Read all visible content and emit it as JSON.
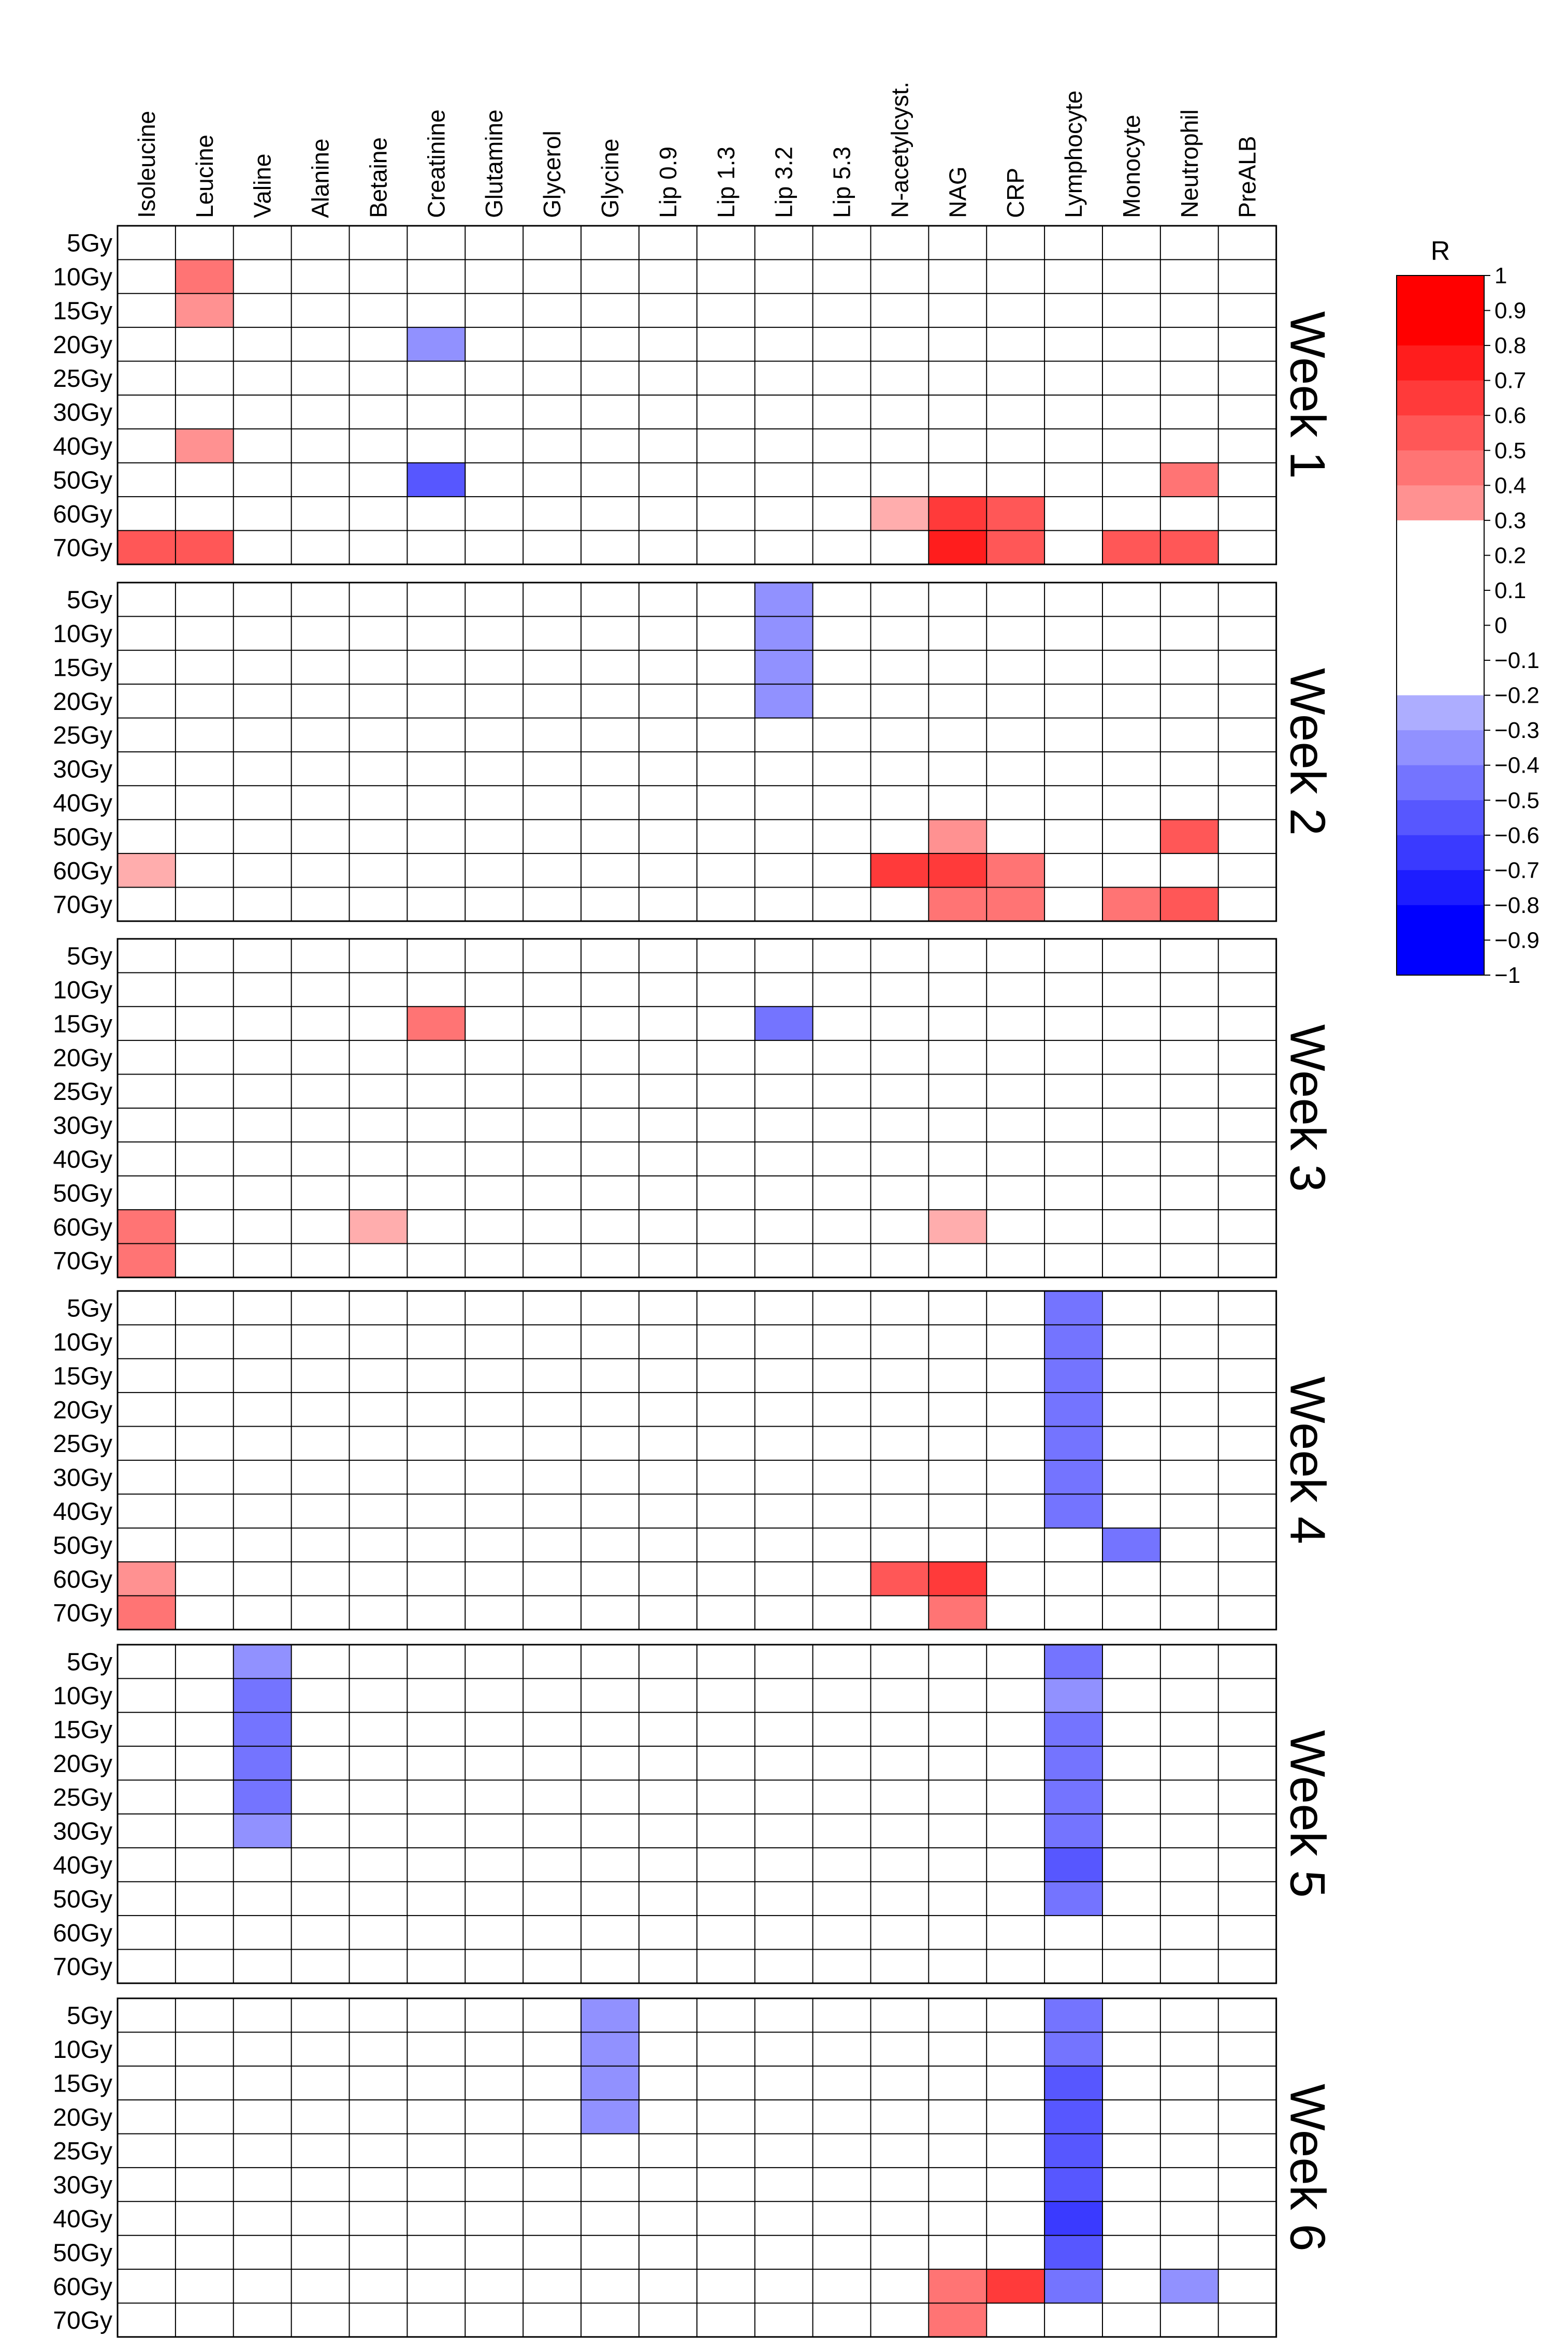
{
  "chart_data": {
    "type": "heatmap",
    "title": "",
    "columns": [
      "Isoleucine",
      "Leucine",
      "Valine",
      "Alanine",
      "Betaine",
      "Creatinine",
      "Glutamine",
      "Glycerol",
      "Glycine",
      "Lip 0.9",
      "Lip 1.3",
      "Lip 3.2",
      "Lip 5.3",
      "N-acetylcyst.",
      "NAG",
      "CRP",
      "Lymphocyte",
      "Monocyte",
      "Neutrophil",
      "PreALB"
    ],
    "rows": [
      "5Gy",
      "10Gy",
      "15Gy",
      "20Gy",
      "25Gy",
      "30Gy",
      "40Gy",
      "50Gy",
      "60Gy",
      "70Gy"
    ],
    "group_separators_after_rows": [
      4,
      7
    ],
    "colorscale": {
      "title": "R",
      "range": [
        -1,
        1
      ],
      "neutral_band": [
        -0.3,
        0.3
      ],
      "ticks": [
        1,
        0.9,
        0.8,
        0.7,
        0.6,
        0.5,
        0.4,
        0.3,
        0.2,
        0.1,
        0,
        -0.1,
        -0.2,
        -0.3,
        -0.4,
        -0.5,
        -0.6,
        -0.7,
        -0.8,
        -0.9,
        -1
      ],
      "tick_labels": [
        "1",
        "0.9",
        "0.8",
        "0.7",
        "0.6",
        "0.5",
        "0.4",
        "0.3",
        "0.2",
        "0.1",
        "0",
        "−0.1",
        "−0.2",
        "−0.3",
        "−0.4",
        "−0.5",
        "−0.6",
        "−0.7",
        "−0.8",
        "−0.9",
        "−1"
      ],
      "positive_color": "#ff0000",
      "negative_color": "#0000ff",
      "neutral_color": "#ffffff"
    },
    "panels": [
      {
        "label": "Week 1",
        "cells": [
          {
            "row": "10Gy",
            "col": "Leucine",
            "r": 0.5
          },
          {
            "row": "15Gy",
            "col": "Leucine",
            "r": 0.4
          },
          {
            "row": "20Gy",
            "col": "Creatinine",
            "r": -0.4
          },
          {
            "row": "40Gy",
            "col": "Leucine",
            "r": 0.4
          },
          {
            "row": "50Gy",
            "col": "Creatinine",
            "r": -0.6
          },
          {
            "row": "50Gy",
            "col": "Neutrophil",
            "r": 0.5
          },
          {
            "row": "60Gy",
            "col": "N-acetylcyst.",
            "r": 0.35
          },
          {
            "row": "60Gy",
            "col": "NAG",
            "r": 0.7
          },
          {
            "row": "60Gy",
            "col": "CRP",
            "r": 0.6
          },
          {
            "row": "70Gy",
            "col": "Isoleucine",
            "r": 0.6
          },
          {
            "row": "70Gy",
            "col": "Leucine",
            "r": 0.6
          },
          {
            "row": "70Gy",
            "col": "NAG",
            "r": 0.8
          },
          {
            "row": "70Gy",
            "col": "CRP",
            "r": 0.6
          },
          {
            "row": "70Gy",
            "col": "Monocyte",
            "r": 0.6
          },
          {
            "row": "70Gy",
            "col": "Neutrophil",
            "r": 0.6
          }
        ]
      },
      {
        "label": "Week 2",
        "cells": [
          {
            "row": "5Gy",
            "col": "Lip 3.2",
            "r": -0.4
          },
          {
            "row": "10Gy",
            "col": "Lip 3.2",
            "r": -0.4
          },
          {
            "row": "15Gy",
            "col": "Lip 3.2",
            "r": -0.4
          },
          {
            "row": "20Gy",
            "col": "Lip 3.2",
            "r": -0.4
          },
          {
            "row": "50Gy",
            "col": "NAG",
            "r": 0.4
          },
          {
            "row": "50Gy",
            "col": "Neutrophil",
            "r": 0.6
          },
          {
            "row": "60Gy",
            "col": "Isoleucine",
            "r": 0.35
          },
          {
            "row": "60Gy",
            "col": "N-acetylcyst.",
            "r": 0.7
          },
          {
            "row": "60Gy",
            "col": "NAG",
            "r": 0.7
          },
          {
            "row": "60Gy",
            "col": "CRP",
            "r": 0.55
          },
          {
            "row": "70Gy",
            "col": "NAG",
            "r": 0.55
          },
          {
            "row": "70Gy",
            "col": "CRP",
            "r": 0.55
          },
          {
            "row": "70Gy",
            "col": "Monocyte",
            "r": 0.55
          },
          {
            "row": "70Gy",
            "col": "Neutrophil",
            "r": 0.6
          }
        ]
      },
      {
        "label": "Week 3",
        "cells": [
          {
            "row": "15Gy",
            "col": "Creatinine",
            "r": 0.55
          },
          {
            "row": "15Gy",
            "col": "Lip 3.2",
            "r": -0.55
          },
          {
            "row": "60Gy",
            "col": "Isoleucine",
            "r": 0.55
          },
          {
            "row": "60Gy",
            "col": "Betaine",
            "r": 0.35
          },
          {
            "row": "60Gy",
            "col": "NAG",
            "r": 0.35
          },
          {
            "row": "70Gy",
            "col": "Isoleucine",
            "r": 0.55
          }
        ]
      },
      {
        "label": "Week 4",
        "cells": [
          {
            "row": "5Gy",
            "col": "Lymphocyte",
            "r": -0.55
          },
          {
            "row": "10Gy",
            "col": "Lymphocyte",
            "r": -0.55
          },
          {
            "row": "15Gy",
            "col": "Lymphocyte",
            "r": -0.55
          },
          {
            "row": "20Gy",
            "col": "Lymphocyte",
            "r": -0.55
          },
          {
            "row": "25Gy",
            "col": "Lymphocyte",
            "r": -0.55
          },
          {
            "row": "30Gy",
            "col": "Lymphocyte",
            "r": -0.55
          },
          {
            "row": "40Gy",
            "col": "Lymphocyte",
            "r": -0.55
          },
          {
            "row": "50Gy",
            "col": "Monocyte",
            "r": -0.55
          },
          {
            "row": "60Gy",
            "col": "Isoleucine",
            "r": 0.45
          },
          {
            "row": "60Gy",
            "col": "N-acetylcyst.",
            "r": 0.6
          },
          {
            "row": "60Gy",
            "col": "NAG",
            "r": 0.75
          },
          {
            "row": "70Gy",
            "col": "Isoleucine",
            "r": 0.55
          },
          {
            "row": "70Gy",
            "col": "NAG",
            "r": 0.55
          }
        ]
      },
      {
        "label": "Week 5",
        "cells": [
          {
            "row": "5Gy",
            "col": "Valine",
            "r": -0.4
          },
          {
            "row": "10Gy",
            "col": "Valine",
            "r": -0.55
          },
          {
            "row": "15Gy",
            "col": "Valine",
            "r": -0.55
          },
          {
            "row": "20Gy",
            "col": "Valine",
            "r": -0.55
          },
          {
            "row": "25Gy",
            "col": "Valine",
            "r": -0.55
          },
          {
            "row": "30Gy",
            "col": "Valine",
            "r": -0.4
          },
          {
            "row": "5Gy",
            "col": "Lymphocyte",
            "r": -0.55
          },
          {
            "row": "10Gy",
            "col": "Lymphocyte",
            "r": -0.4
          },
          {
            "row": "15Gy",
            "col": "Lymphocyte",
            "r": -0.55
          },
          {
            "row": "20Gy",
            "col": "Lymphocyte",
            "r": -0.55
          },
          {
            "row": "25Gy",
            "col": "Lymphocyte",
            "r": -0.55
          },
          {
            "row": "30Gy",
            "col": "Lymphocyte",
            "r": -0.55
          },
          {
            "row": "40Gy",
            "col": "Lymphocyte",
            "r": -0.6
          },
          {
            "row": "50Gy",
            "col": "Lymphocyte",
            "r": -0.5
          }
        ]
      },
      {
        "label": "Week 6",
        "cells": [
          {
            "row": "5Gy",
            "col": "Glycine",
            "r": -0.4
          },
          {
            "row": "10Gy",
            "col": "Glycine",
            "r": -0.4
          },
          {
            "row": "15Gy",
            "col": "Glycine",
            "r": -0.4
          },
          {
            "row": "20Gy",
            "col": "Glycine",
            "r": -0.4
          },
          {
            "row": "5Gy",
            "col": "Lymphocyte",
            "r": -0.55
          },
          {
            "row": "10Gy",
            "col": "Lymphocyte",
            "r": -0.55
          },
          {
            "row": "15Gy",
            "col": "Lymphocyte",
            "r": -0.65
          },
          {
            "row": "20Gy",
            "col": "Lymphocyte",
            "r": -0.65
          },
          {
            "row": "25Gy",
            "col": "Lymphocyte",
            "r": -0.65
          },
          {
            "row": "30Gy",
            "col": "Lymphocyte",
            "r": -0.65
          },
          {
            "row": "40Gy",
            "col": "Lymphocyte",
            "r": -0.75
          },
          {
            "row": "50Gy",
            "col": "Lymphocyte",
            "r": -0.65
          },
          {
            "row": "60Gy",
            "col": "Lymphocyte",
            "r": -0.5
          },
          {
            "row": "60Gy",
            "col": "NAG",
            "r": 0.5
          },
          {
            "row": "60Gy",
            "col": "CRP",
            "r": 0.7
          },
          {
            "row": "60Gy",
            "col": "Neutrophil",
            "r": -0.4
          },
          {
            "row": "70Gy",
            "col": "NAG",
            "r": 0.5
          }
        ]
      }
    ]
  }
}
